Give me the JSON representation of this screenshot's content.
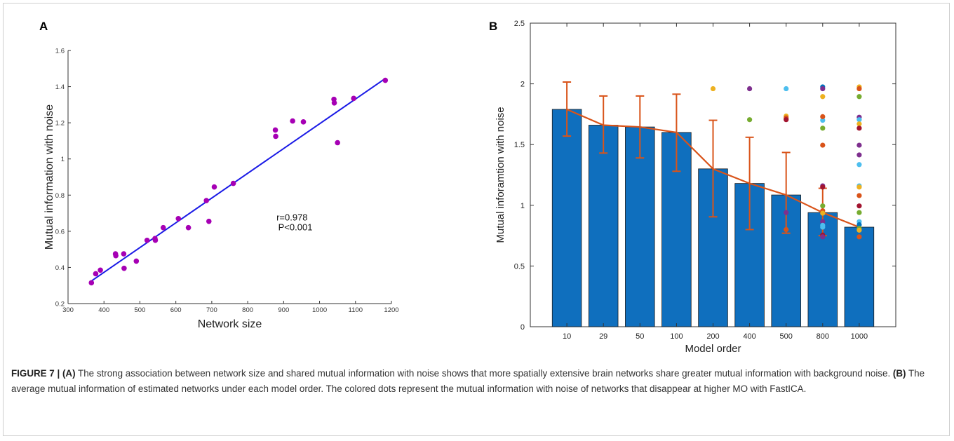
{
  "panel_a_label": "A",
  "panel_b_label": "B",
  "caption": {
    "figure_label": "FIGURE 7 | ",
    "part_a_tag": "(A)",
    "part_a_text": " The strong association between network size and shared mutual information with noise shows that more spatially extensive brain networks share greater mutual information with background noise. ",
    "part_b_tag": "(B)",
    "part_b_text": " The average mutual information of estimated networks under each model order. The colored dots represent the mutual information with noise of networks that disappear at higher MO with FastICA."
  },
  "colors": {
    "scatter_points": "#a600b4",
    "fit_line": "#1a1ae6",
    "bars": "#0f6fbe",
    "error_line": "#d9541a"
  },
  "chart_data": [
    {
      "type": "scatter",
      "xlabel": "Network size",
      "ylabel": "Mutual information with noise",
      "xlim": [
        300,
        1200
      ],
      "ylim": [
        0.2,
        1.6
      ],
      "xticks": [
        "300",
        "400",
        "500",
        "600",
        "700",
        "800",
        "900",
        "1000",
        "1100",
        "1200"
      ],
      "yticks": [
        "0.2",
        "0.4",
        "0.6",
        "0.8",
        "1",
        "1.2",
        "1.4",
        "1.6"
      ],
      "annotation": [
        "r=0.978",
        "P<0.001"
      ],
      "fit_line": {
        "x": [
          365,
          1183
        ],
        "y": [
          0.325,
          1.445
        ]
      },
      "points": [
        {
          "x": 365,
          "y": 0.315
        },
        {
          "x": 377,
          "y": 0.365
        },
        {
          "x": 390,
          "y": 0.385
        },
        {
          "x": 432,
          "y": 0.475
        },
        {
          "x": 433,
          "y": 0.465
        },
        {
          "x": 455,
          "y": 0.475
        },
        {
          "x": 456,
          "y": 0.395
        },
        {
          "x": 490,
          "y": 0.435
        },
        {
          "x": 520,
          "y": 0.55
        },
        {
          "x": 542,
          "y": 0.56
        },
        {
          "x": 543,
          "y": 0.55
        },
        {
          "x": 565,
          "y": 0.62
        },
        {
          "x": 607,
          "y": 0.67
        },
        {
          "x": 635,
          "y": 0.62
        },
        {
          "x": 685,
          "y": 0.77
        },
        {
          "x": 692,
          "y": 0.655
        },
        {
          "x": 707,
          "y": 0.845
        },
        {
          "x": 760,
          "y": 0.865
        },
        {
          "x": 877,
          "y": 1.16
        },
        {
          "x": 878,
          "y": 1.125
        },
        {
          "x": 925,
          "y": 1.21
        },
        {
          "x": 955,
          "y": 1.205
        },
        {
          "x": 1040,
          "y": 1.33
        },
        {
          "x": 1041,
          "y": 1.31
        },
        {
          "x": 1050,
          "y": 1.09
        },
        {
          "x": 1095,
          "y": 1.335
        },
        {
          "x": 1183,
          "y": 1.435
        }
      ]
    },
    {
      "type": "bar",
      "xlabel": "Model order",
      "ylabel": "Mutual inforamtion with noise",
      "ylim": [
        0,
        2.5
      ],
      "yticks": [
        "0",
        "0.5",
        "1",
        "1.5",
        "2",
        "2.5"
      ],
      "categories": [
        "10",
        "29",
        "50",
        "100",
        "200",
        "400",
        "500",
        "800",
        "1000"
      ],
      "values": [
        1.79,
        1.66,
        1.645,
        1.6,
        1.3,
        1.18,
        1.085,
        0.94,
        0.82
      ],
      "error_low": [
        1.57,
        1.43,
        1.39,
        1.28,
        0.905,
        0.8,
        0.77,
        0.75,
        0.8
      ],
      "error_high": [
        2.015,
        1.9,
        1.9,
        1.915,
        1.7,
        1.56,
        1.435,
        1.14,
        0.8
      ],
      "dots": [
        {
          "cat": 4,
          "y": 1.96,
          "color": "#edb120"
        },
        {
          "cat": 5,
          "y": 1.96,
          "color": "#7e2f8e"
        },
        {
          "cat": 5,
          "y": 1.705,
          "color": "#77ac30"
        },
        {
          "cat": 6,
          "y": 1.96,
          "color": "#4dbeee"
        },
        {
          "cat": 6,
          "y": 1.735,
          "color": "#edb120"
        },
        {
          "cat": 6,
          "y": 1.72,
          "color": "#d95319"
        },
        {
          "cat": 6,
          "y": 1.705,
          "color": "#a2142f"
        },
        {
          "cat": 6,
          "y": 0.94,
          "color": "#7e2f8e"
        },
        {
          "cat": 6,
          "y": 0.8,
          "color": "#d95319"
        },
        {
          "cat": 7,
          "y": 1.975,
          "color": "#0072bd"
        },
        {
          "cat": 7,
          "y": 1.96,
          "color": "#7e2f8e"
        },
        {
          "cat": 7,
          "y": 1.895,
          "color": "#edb120"
        },
        {
          "cat": 7,
          "y": 1.7,
          "color": "#4dbeee"
        },
        {
          "cat": 7,
          "y": 1.73,
          "color": "#d95319"
        },
        {
          "cat": 7,
          "y": 1.635,
          "color": "#77ac30"
        },
        {
          "cat": 7,
          "y": 1.495,
          "color": "#d95319"
        },
        {
          "cat": 7,
          "y": 1.16,
          "color": "#7e2f8e"
        },
        {
          "cat": 7,
          "y": 1.15,
          "color": "#a2142f"
        },
        {
          "cat": 7,
          "y": 0.995,
          "color": "#77ac30"
        },
        {
          "cat": 7,
          "y": 0.955,
          "color": "#d95319"
        },
        {
          "cat": 7,
          "y": 0.935,
          "color": "#edb120"
        },
        {
          "cat": 7,
          "y": 0.865,
          "color": "#7e2f8e"
        },
        {
          "cat": 7,
          "y": 0.835,
          "color": "#4dbeee"
        },
        {
          "cat": 7,
          "y": 0.82,
          "color": "#4dbeee"
        },
        {
          "cat": 7,
          "y": 0.755,
          "color": "#a2142f"
        },
        {
          "cat": 7,
          "y": 0.74,
          "color": "#7e2f8e"
        },
        {
          "cat": 8,
          "y": 1.975,
          "color": "#edb120"
        },
        {
          "cat": 8,
          "y": 1.96,
          "color": "#d95319"
        },
        {
          "cat": 8,
          "y": 1.895,
          "color": "#77ac30"
        },
        {
          "cat": 8,
          "y": 1.725,
          "color": "#7e2f8e"
        },
        {
          "cat": 8,
          "y": 1.705,
          "color": "#4dbeee"
        },
        {
          "cat": 8,
          "y": 1.67,
          "color": "#edb120"
        },
        {
          "cat": 8,
          "y": 1.635,
          "color": "#a2142f"
        },
        {
          "cat": 8,
          "y": 1.495,
          "color": "#7e2f8e"
        },
        {
          "cat": 8,
          "y": 1.415,
          "color": "#7e2f8e"
        },
        {
          "cat": 8,
          "y": 1.335,
          "color": "#4dbeee"
        },
        {
          "cat": 8,
          "y": 1.16,
          "color": "#4dbeee"
        },
        {
          "cat": 8,
          "y": 1.15,
          "color": "#edb120"
        },
        {
          "cat": 8,
          "y": 1.08,
          "color": "#d95319"
        },
        {
          "cat": 8,
          "y": 0.995,
          "color": "#a2142f"
        },
        {
          "cat": 8,
          "y": 0.94,
          "color": "#77ac30"
        },
        {
          "cat": 8,
          "y": 0.865,
          "color": "#4dbeee"
        },
        {
          "cat": 8,
          "y": 0.84,
          "color": "#0072bd"
        },
        {
          "cat": 8,
          "y": 0.81,
          "color": "#77ac30"
        },
        {
          "cat": 8,
          "y": 0.795,
          "color": "#edb120"
        },
        {
          "cat": 8,
          "y": 0.74,
          "color": "#d95319"
        }
      ]
    }
  ]
}
